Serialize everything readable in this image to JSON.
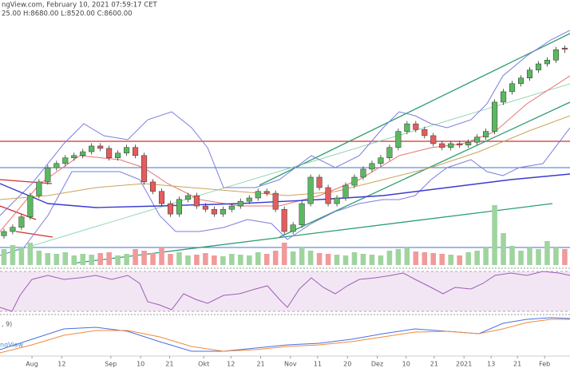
{
  "chart_data": {
    "type": "candlestick",
    "header": [
      "ngView.com, February 10, 2021 07:59:17 CET",
      "25.00 H:8680.00 L:8520.00 C:8600.00"
    ],
    "macd_label": ", 9)",
    "watermark": "ngView",
    "xlim": [
      -0.45,
      64.6
    ],
    "xticks": [
      {
        "value": 3.2,
        "label": "Aug"
      },
      {
        "value": 6.6,
        "label": "12"
      },
      {
        "value": 12.2,
        "label": "Sep"
      },
      {
        "value": 15.6,
        "label": "10"
      },
      {
        "value": 18.9,
        "label": "21"
      },
      {
        "value": 22.8,
        "label": "Okt"
      },
      {
        "value": 25.9,
        "label": "12"
      },
      {
        "value": 29.3,
        "label": "21"
      },
      {
        "value": 32.7,
        "label": "Nov"
      },
      {
        "value": 35.8,
        "label": "11"
      },
      {
        "value": 39.2,
        "label": "20"
      },
      {
        "value": 42.6,
        "label": "Dez"
      },
      {
        "value": 45.9,
        "label": "10"
      },
      {
        "value": 49.1,
        "label": "21"
      },
      {
        "value": 52.5,
        "label": "2021"
      },
      {
        "value": 55.6,
        "label": "13"
      },
      {
        "value": 58.6,
        "label": "21"
      },
      {
        "value": 61.7,
        "label": "Feb"
      }
    ],
    "ylim": [
      4030,
      9000
    ],
    "up_color": "#5cb860",
    "down_color": "#e35d5d",
    "open": [
      4650,
      4740,
      4830,
      5050,
      5500,
      5790,
      6090,
      6180,
      6300,
      6350,
      6430,
      6550,
      6500,
      6300,
      6400,
      6520,
      6350,
      5790,
      5590,
      5330,
      5110,
      5420,
      5500,
      5280,
      5210,
      5110,
      5210,
      5280,
      5380,
      5450,
      5590,
      5550,
      5210,
      4740,
      4880,
      5330,
      5890,
      5670,
      5330,
      5450,
      5720,
      5890,
      6060,
      6180,
      6300,
      6520,
      6860,
      7020,
      6900,
      6770,
      6600,
      6520,
      6600,
      6570,
      6630,
      6740,
      6860,
      7480,
      7700,
      7870,
      7990,
      8160,
      8290,
      8370,
      8625
    ],
    "high": [
      4800,
      4890,
      5110,
      5560,
      5850,
      6150,
      6240,
      6360,
      6410,
      6490,
      6610,
      6610,
      6560,
      6460,
      6580,
      6580,
      6410,
      5850,
      5650,
      5390,
      5480,
      5560,
      5560,
      5340,
      5270,
      5270,
      5340,
      5440,
      5510,
      5650,
      5650,
      5610,
      5270,
      4940,
      5390,
      5950,
      5950,
      5730,
      5510,
      5780,
      5950,
      6120,
      6240,
      6360,
      6580,
      6920,
      7080,
      7080,
      6960,
      6830,
      6660,
      6660,
      6660,
      6690,
      6800,
      6920,
      7540,
      7760,
      7930,
      8050,
      8220,
      8350,
      8430,
      8650,
      8680
    ],
    "low": [
      4590,
      4680,
      4770,
      4990,
      5440,
      5730,
      6030,
      6120,
      6240,
      6290,
      6370,
      6440,
      6240,
      6240,
      6340,
      6290,
      5730,
      5530,
      5270,
      5050,
      5050,
      5360,
      5220,
      5150,
      5050,
      5050,
      5150,
      5220,
      5320,
      5390,
      5490,
      5150,
      4680,
      4680,
      4820,
      5270,
      5610,
      5270,
      5270,
      5390,
      5660,
      5830,
      6000,
      6120,
      6240,
      6460,
      6800,
      6840,
      6710,
      6540,
      6460,
      6460,
      6510,
      6510,
      6570,
      6680,
      6800,
      7420,
      7640,
      7810,
      7930,
      8100,
      8230,
      8310,
      8520
    ],
    "close": [
      4740,
      4830,
      5050,
      5500,
      5790,
      6090,
      6180,
      6300,
      6350,
      6430,
      6550,
      6500,
      6300,
      6400,
      6520,
      6350,
      5790,
      5590,
      5330,
      5110,
      5420,
      5500,
      5280,
      5210,
      5110,
      5210,
      5280,
      5380,
      5450,
      5590,
      5550,
      5210,
      4740,
      4880,
      5330,
      5890,
      5670,
      5330,
      5450,
      5720,
      5890,
      6060,
      6180,
      6300,
      6520,
      6860,
      7020,
      6900,
      6770,
      6600,
      6520,
      6600,
      6570,
      6630,
      6740,
      6860,
      7480,
      7700,
      7870,
      7990,
      8160,
      8290,
      8370,
      8590,
      8600
    ],
    "volume": {
      "ylim": [
        0,
        100
      ],
      "up_color": "#9fd49f",
      "down_color": "#f19a9a",
      "values": [
        20,
        25,
        22,
        28,
        18,
        15,
        14,
        16,
        12,
        14,
        13,
        15,
        16,
        12,
        14,
        20,
        18,
        15,
        22,
        14,
        16,
        12,
        13,
        15,
        12,
        11,
        14,
        13,
        12,
        16,
        14,
        18,
        28,
        17,
        22,
        18,
        15,
        14,
        13,
        12,
        16,
        14,
        13,
        12,
        18,
        20,
        22,
        17,
        16,
        15,
        14,
        13,
        12,
        16,
        18,
        22,
        75,
        40,
        24,
        18,
        22,
        20,
        30,
        22,
        20
      ]
    }
  }
}
